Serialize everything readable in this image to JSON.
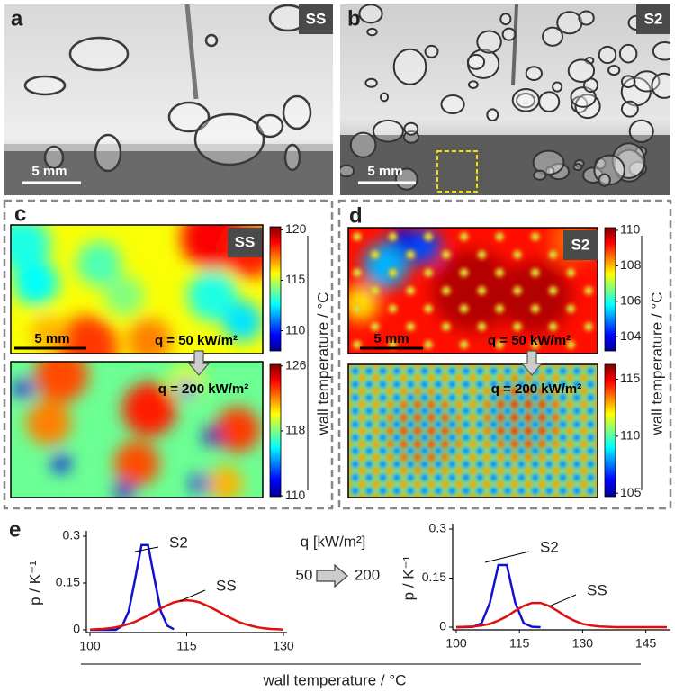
{
  "panels": {
    "a": {
      "letter": "a",
      "tag": "SS",
      "scale": "5 mm"
    },
    "b": {
      "letter": "b",
      "tag": "S2",
      "scale": "5 mm"
    },
    "c": {
      "letter": "c",
      "tag": "SS",
      "scale": "5 mm",
      "q_top": "q = 50 kW/m²",
      "q_bottom": "q = 200 kW/m²",
      "cbar_label": "wall temperature / °C",
      "cbar_top": {
        "lim": [
          108.0,
          120.3
        ],
        "ticks": [
          120,
          115,
          110
        ]
      },
      "cbar_bottom": {
        "lim": [
          109.9,
          126.2
        ],
        "ticks": [
          126,
          118,
          110
        ]
      }
    },
    "d": {
      "letter": "d",
      "tag": "S2",
      "scale": "5 mm",
      "q_top": "q = 50 kW/m²",
      "q_bottom": "q = 200 kW/m²",
      "cbar_label": "wall temperature / °C",
      "cbar_top": {
        "lim": [
          103.2,
          110.15
        ],
        "ticks": [
          110,
          108,
          106,
          104
        ]
      },
      "cbar_bottom": {
        "lim": [
          104.7,
          116.3
        ],
        "ticks": [
          115,
          110,
          105
        ]
      }
    },
    "e": {
      "letter": "e",
      "q_label": "q [kW/m²]",
      "q_from": 50,
      "q_to": 200,
      "shared_xlabel": "wall temperature / °C"
    }
  },
  "chart_data": [
    {
      "type": "line",
      "ylabel": "p / K⁻¹",
      "x": [
        100,
        101,
        102,
        103,
        104,
        105,
        106,
        107,
        108,
        109,
        110,
        111,
        112,
        113,
        114,
        115,
        116,
        117,
        118,
        119,
        120,
        121,
        122,
        123,
        124,
        125,
        126,
        127,
        128,
        129,
        130
      ],
      "xlim": [
        100,
        130
      ],
      "xticks": [
        100,
        115,
        130
      ],
      "ylim": [
        0,
        0.3
      ],
      "yticks": [
        0,
        0.15,
        0.3
      ],
      "series": [
        {
          "name": "S2",
          "color": "#1010d0",
          "values": [
            0,
            0,
            0,
            0,
            0,
            0.013,
            0.059,
            0.163,
            0.272,
            0.272,
            0.163,
            0.059,
            0.013,
            0.002,
            null,
            null,
            null,
            null,
            null,
            null,
            null,
            null,
            null,
            null,
            null,
            null,
            null,
            null,
            null,
            null,
            null
          ]
        },
        {
          "name": "SS",
          "color": "#e01010",
          "values": [
            0.001,
            0.002,
            0.003,
            0.005,
            0.008,
            0.013,
            0.019,
            0.026,
            0.036,
            0.046,
            0.058,
            0.069,
            0.079,
            0.088,
            0.093,
            0.095,
            0.093,
            0.088,
            0.079,
            0.069,
            0.058,
            0.046,
            0.036,
            0.026,
            0.019,
            0.013,
            0.008,
            0.005,
            0.003,
            0.002,
            0.001
          ]
        }
      ]
    },
    {
      "type": "line",
      "ylabel": "p / K⁻¹",
      "x": [
        100,
        102,
        104,
        106,
        108,
        110,
        112,
        114,
        116,
        118,
        120,
        122,
        124,
        126,
        128,
        130,
        132,
        134,
        136,
        138,
        140,
        142,
        144,
        146,
        148,
        150
      ],
      "xlim": [
        100,
        150
      ],
      "xticks": [
        100,
        115,
        130,
        145
      ],
      "ylim": [
        0,
        0.3
      ],
      "yticks": [
        0,
        0.15,
        0.3
      ],
      "series": [
        {
          "name": "S2",
          "color": "#1010d0",
          "values": [
            0,
            0,
            0.001,
            0.012,
            0.075,
            0.19,
            0.19,
            0.075,
            0.012,
            0.001,
            0,
            null,
            null,
            null,
            null,
            null,
            null,
            null,
            null,
            null,
            null,
            null,
            null,
            null,
            null,
            null
          ]
        },
        {
          "name": "SS",
          "color": "#e01010",
          "values": [
            0,
            0.001,
            0.002,
            0.005,
            0.01,
            0.02,
            0.033,
            0.05,
            0.065,
            0.074,
            0.074,
            0.065,
            0.05,
            0.033,
            0.02,
            0.01,
            0.005,
            0.002,
            0.001,
            0,
            0,
            0,
            0,
            0,
            0,
            0
          ]
        }
      ]
    }
  ]
}
